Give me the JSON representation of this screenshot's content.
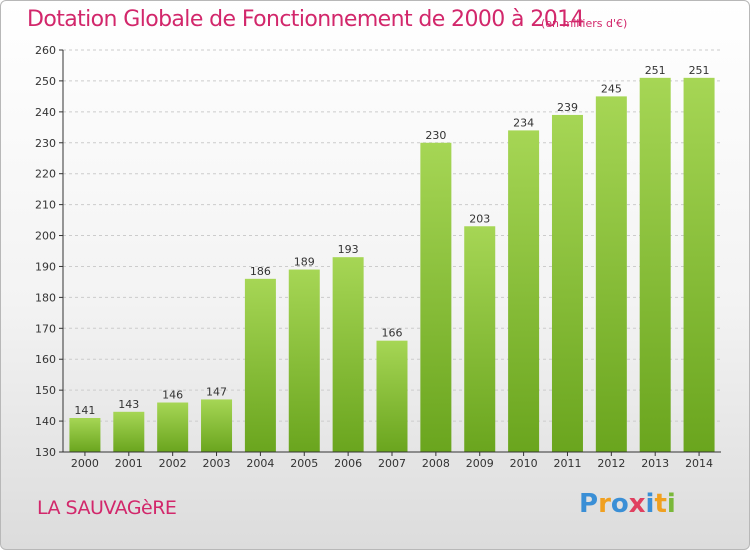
{
  "title": "Dotation Globale de Fonctionnement de 2000 à 2014",
  "unit": "(en milliers d'€)",
  "commune": "LA SAUVAGèRE",
  "logo": {
    "text": "Proxiti",
    "letter_colors": [
      "#3a8fd6",
      "#f0a020",
      "#3a8fd6",
      "#e04060",
      "#3a8fd6",
      "#f0a020",
      "#7ab83a"
    ]
  },
  "colors": {
    "title": "#d2276b",
    "bar_light": "#a6d655",
    "bar_dark": "#6aa51e",
    "grid": "#cccccc",
    "axis": "#333333"
  },
  "chart_data": {
    "type": "bar",
    "title": "Dotation Globale de Fonctionnement de 2000 à 2014",
    "categories": [
      "2000",
      "2001",
      "2002",
      "2003",
      "2004",
      "2005",
      "2006",
      "2007",
      "2008",
      "2009",
      "2010",
      "2011",
      "2012",
      "2013",
      "2014"
    ],
    "values": [
      141,
      143,
      146,
      147,
      186,
      189,
      193,
      166,
      230,
      203,
      234,
      239,
      245,
      251,
      251
    ],
    "ylim": [
      130,
      260
    ],
    "yticks": [
      130,
      140,
      150,
      160,
      170,
      180,
      190,
      200,
      210,
      220,
      230,
      240,
      250,
      260
    ],
    "xlabel": "",
    "ylabel": "",
    "grid": true,
    "data_labels": true
  }
}
